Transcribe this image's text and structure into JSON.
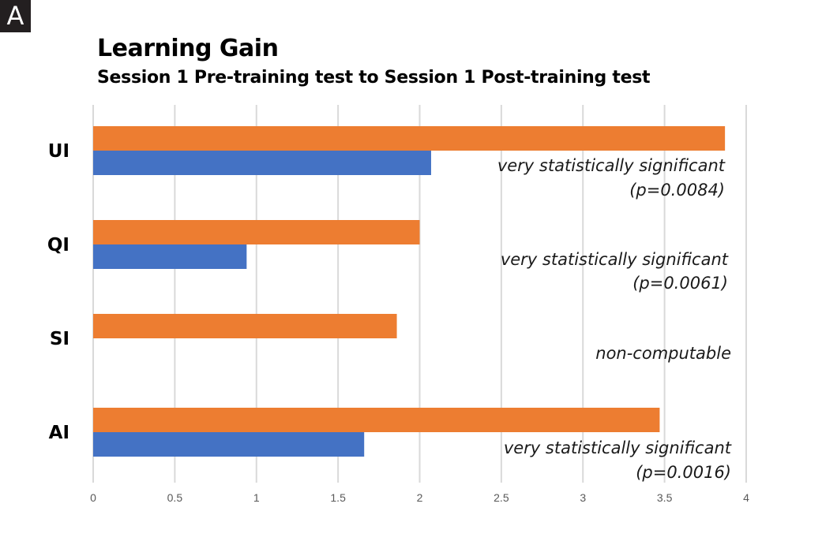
{
  "panel_label": "A",
  "chart_data": {
    "type": "bar",
    "orientation": "horizontal",
    "title": "Learning Gain",
    "subtitle": "Session 1 Pre-training test to Session 1 Post-training test",
    "categories": [
      "UI",
      "QI",
      "SI",
      "AI"
    ],
    "series": [
      {
        "color": "#ed7d31",
        "values": [
          3.87,
          2.0,
          1.86,
          3.47
        ]
      },
      {
        "color": "#4472c4",
        "values": [
          2.07,
          0.94,
          null,
          1.66
        ]
      }
    ],
    "annotations": [
      {
        "category": "UI",
        "lines": [
          "very statistically significant",
          "(p=0.0084)"
        ]
      },
      {
        "category": "QI",
        "lines": [
          "very statistically significant",
          "(p=0.0061)"
        ]
      },
      {
        "category": "SI",
        "lines": [
          "non-computable"
        ]
      },
      {
        "category": "AI",
        "lines": [
          "very statistically significant",
          "(p=0.0016)"
        ]
      }
    ],
    "xlim": [
      0,
      4
    ],
    "xticks": [
      0,
      0.5,
      1,
      1.5,
      2,
      2.5,
      3,
      3.5,
      4
    ],
    "xtick_labels": [
      "0",
      "0.5",
      "1",
      "1.5",
      "2",
      "2.5",
      "3",
      "3.5",
      "4"
    ],
    "grid": "vertical",
    "legend": "none"
  }
}
